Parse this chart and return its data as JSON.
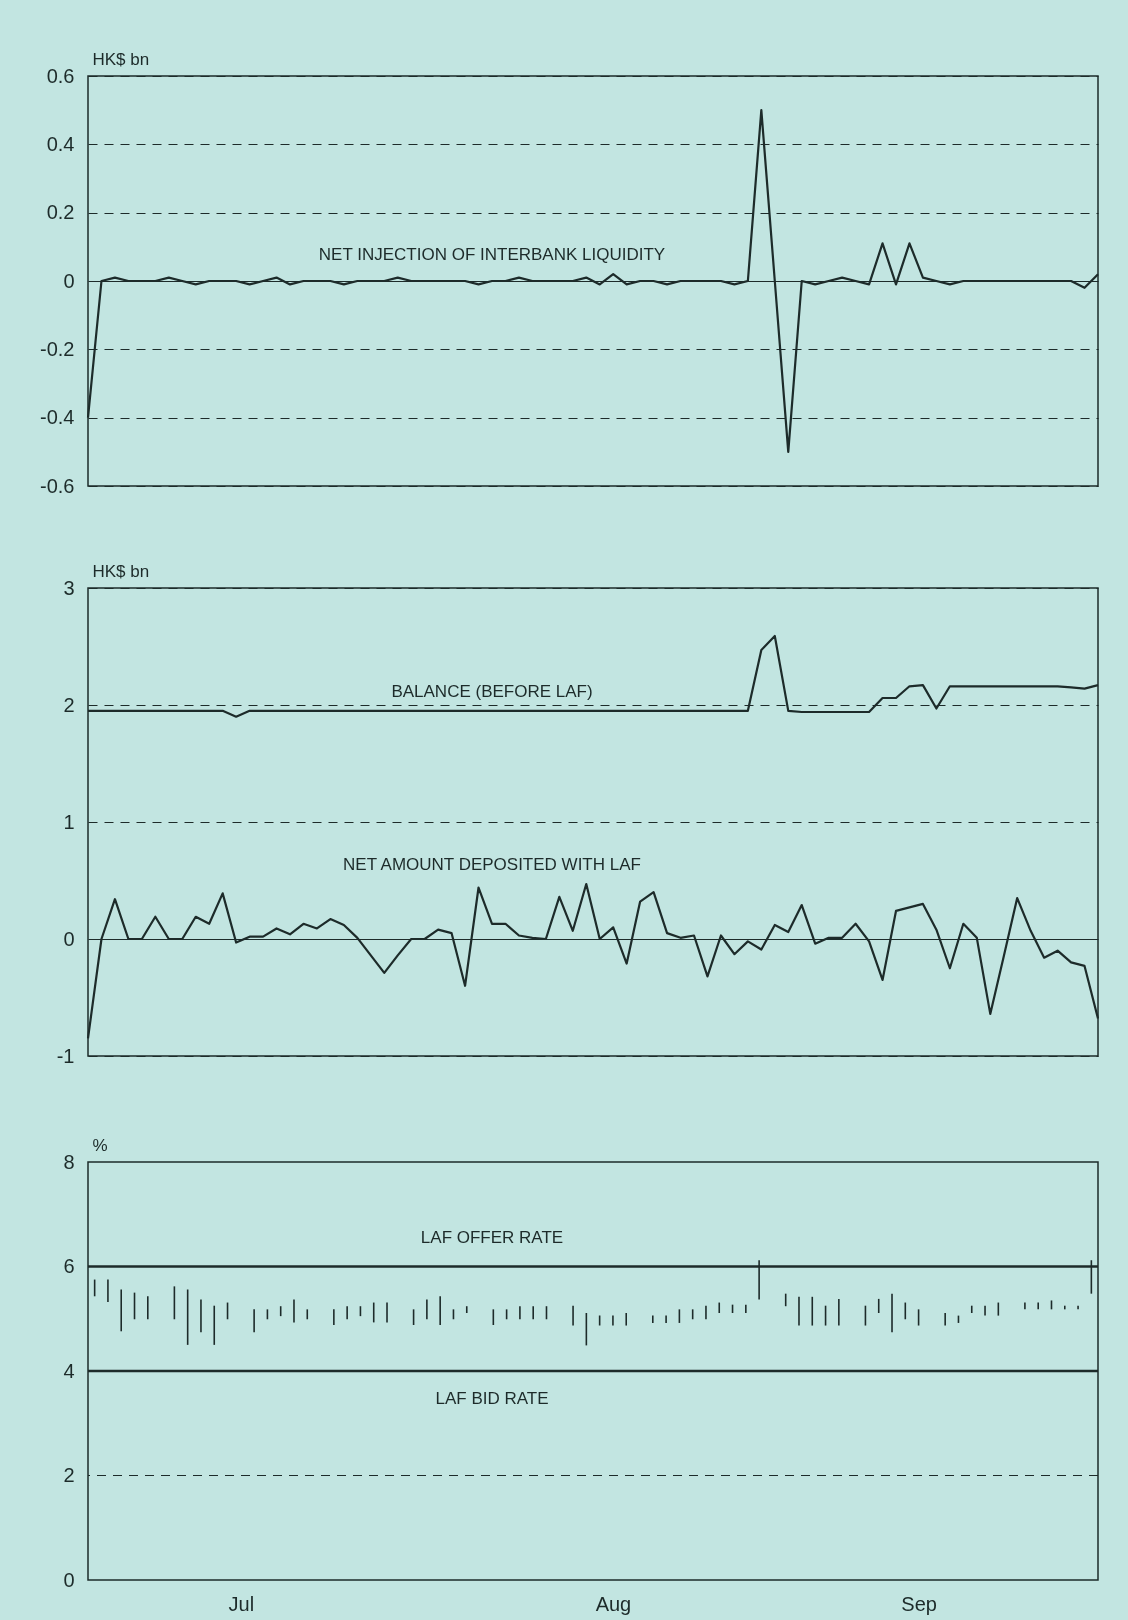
{
  "chart_data": [
    {
      "type": "line",
      "ylabel": "HK$ bn",
      "categories": [
        null,
        null,
        null,
        null,
        null,
        null,
        null,
        null,
        null,
        null,
        null,
        null,
        null,
        null,
        null,
        null,
        null,
        null,
        null,
        null,
        null,
        null,
        null,
        null,
        null,
        null,
        null,
        null,
        null,
        null,
        null,
        null,
        null,
        null,
        null,
        null,
        null,
        null,
        null,
        null,
        null,
        null,
        null,
        null,
        null,
        null,
        null,
        null,
        null,
        null,
        null,
        null,
        null,
        null,
        null,
        null,
        null,
        null,
        null,
        null,
        null,
        null,
        null,
        null,
        null,
        null,
        null,
        null,
        null,
        null,
        null,
        null,
        null,
        null,
        null,
        null
      ],
      "series": [
        {
          "name": "NET INJECTION OF INTERBANK LIQUIDITY",
          "color": "#1d2b2a",
          "values": [
            -0.4,
            0,
            0.01,
            0,
            0,
            0,
            0.01,
            0,
            -0.01,
            0,
            0,
            0,
            -0.01,
            0,
            0.01,
            -0.01,
            0,
            0,
            0,
            -0.01,
            0,
            0,
            0,
            0.01,
            0,
            0,
            0,
            0,
            0,
            -0.01,
            0,
            0,
            0.01,
            0,
            0,
            0,
            0,
            0.01,
            -0.01,
            0.02,
            -0.01,
            0,
            0,
            -0.01,
            0,
            0,
            0,
            0,
            -0.01,
            0,
            0.5,
            0,
            -0.5,
            0,
            -0.01,
            0,
            0.01,
            0,
            -0.01,
            0.11,
            -0.01,
            0.11,
            0.01,
            0,
            -0.01,
            0,
            0,
            0,
            0,
            0,
            0,
            0,
            0,
            0,
            -0.02,
            0.02
          ]
        }
      ],
      "ylim": [
        -0.6,
        0.6
      ],
      "yticks": [
        -0.6,
        -0.4,
        -0.2,
        0,
        0.2,
        0.4,
        0.6
      ],
      "grid": "y",
      "tick_labels": "y"
    },
    {
      "type": "line",
      "ylabel": "HK$ bn",
      "categories": [
        null,
        null,
        null,
        null,
        null,
        null,
        null,
        null,
        null,
        null,
        null,
        null,
        null,
        null,
        null,
        null,
        null,
        null,
        null,
        null,
        null,
        null,
        null,
        null,
        null,
        null,
        null,
        null,
        null,
        null,
        null,
        null,
        null,
        null,
        null,
        null,
        null,
        null,
        null,
        null,
        null,
        null,
        null,
        null,
        null,
        null,
        null,
        null,
        null,
        null,
        null,
        null,
        null,
        null,
        null,
        null,
        null,
        null,
        null,
        null,
        null,
        null,
        null,
        null,
        null,
        null,
        null,
        null,
        null,
        null,
        null,
        null,
        null,
        null,
        null,
        null
      ],
      "series": [
        {
          "name": "BALANCE (BEFORE LAF)",
          "color": "#1d2b2a",
          "values": [
            1.95,
            1.95,
            1.95,
            1.95,
            1.95,
            1.95,
            1.95,
            1.95,
            1.95,
            1.95,
            1.95,
            1.9,
            1.95,
            1.95,
            1.95,
            1.95,
            1.95,
            1.95,
            1.95,
            1.95,
            1.95,
            1.95,
            1.95,
            1.95,
            1.95,
            1.95,
            1.95,
            1.95,
            1.95,
            1.95,
            1.95,
            1.95,
            1.95,
            1.95,
            1.95,
            1.95,
            1.95,
            1.95,
            1.95,
            1.95,
            1.95,
            1.95,
            1.95,
            1.95,
            1.95,
            1.95,
            1.95,
            1.95,
            1.95,
            1.95,
            2.47,
            2.59,
            1.95,
            1.94,
            1.94,
            1.94,
            1.94,
            1.94,
            1.94,
            2.06,
            2.06,
            2.16,
            2.17,
            1.97,
            2.16,
            2.16,
            2.16,
            2.16,
            2.16,
            2.16,
            2.16,
            2.16,
            2.16,
            2.15,
            2.14,
            2.17
          ]
        },
        {
          "name": "NET AMOUNT DEPOSITED WITH LAF",
          "color": "#1d2b2a",
          "values": [
            -0.85,
            0,
            0.34,
            0,
            0,
            0.19,
            0,
            0,
            0.19,
            0.13,
            0.39,
            -0.03,
            0.02,
            0.02,
            0.09,
            0.04,
            0.13,
            0.09,
            0.17,
            0.12,
            0.01,
            -0.14,
            -0.29,
            -0.14,
            0,
            0,
            0.08,
            0.05,
            -0.4,
            0.44,
            0.13,
            0.13,
            0.03,
            0.01,
            0,
            0.36,
            0.07,
            0.47,
            0,
            0.1,
            -0.21,
            0.32,
            0.4,
            0.05,
            0.01,
            0.03,
            -0.32,
            0.03,
            -0.13,
            -0.02,
            -0.09,
            0.12,
            0.06,
            0.29,
            -0.04,
            0.01,
            0.01,
            0.13,
            -0.02,
            -0.35,
            0.24,
            0.27,
            0.3,
            0.08,
            -0.25,
            0.13,
            0.01,
            -0.64,
            -0.15,
            0.35,
            0.07,
            -0.16,
            -0.1,
            -0.2,
            -0.23,
            -0.68
          ]
        }
      ],
      "ylim": [
        -1,
        3
      ],
      "yticks": [
        -1,
        0,
        1,
        2,
        3
      ],
      "grid": "y",
      "tick_labels": "y"
    },
    {
      "type": "bar",
      "ylabel": "%",
      "categories": [
        null,
        null,
        null,
        null,
        null,
        null,
        null,
        null,
        null,
        null,
        null,
        "Jul",
        null,
        null,
        null,
        null,
        null,
        null,
        null,
        null,
        null,
        null,
        null,
        null,
        null,
        null,
        null,
        null,
        null,
        null,
        null,
        null,
        null,
        null,
        null,
        null,
        null,
        null,
        null,
        "Aug",
        null,
        null,
        null,
        null,
        null,
        null,
        null,
        null,
        null,
        null,
        null,
        null,
        null,
        null,
        null,
        null,
        null,
        null,
        null,
        null,
        null,
        null,
        "Sep",
        null,
        null,
        null,
        null,
        null,
        null,
        null,
        null,
        null,
        null,
        null,
        null,
        null
      ],
      "base": [
        5.43,
        5.32,
        4.76,
        4.99,
        4.99,
        null,
        4.99,
        4.5,
        4.74,
        4.5,
        4.99,
        null,
        4.74,
        4.99,
        5.05,
        4.93,
        4.99,
        null,
        4.88,
        4.99,
        5.05,
        4.93,
        4.93,
        null,
        4.88,
        4.99,
        4.88,
        4.99,
        5.11,
        null,
        4.88,
        4.99,
        4.99,
        4.99,
        4.99,
        null,
        4.87,
        4.49,
        4.87,
        4.87,
        4.87,
        null,
        4.92,
        4.92,
        4.92,
        4.99,
        4.99,
        5.11,
        5.11,
        5.11,
        5.37,
        null,
        5.24,
        4.87,
        4.87,
        4.87,
        4.87,
        null,
        4.87,
        5.11,
        4.74,
        4.99,
        4.87,
        null,
        4.87,
        4.92,
        5.11,
        5.06,
        5.06,
        null,
        5.18,
        5.18,
        5.18,
        5.18,
        5.18,
        5.48
      ],
      "values": [
        0.32,
        0.43,
        0.8,
        0.51,
        0.44,
        null,
        0.63,
        1.06,
        0.63,
        0.75,
        0.32,
        null,
        0.44,
        0.19,
        0.19,
        0.44,
        0.19,
        null,
        0.3,
        0.25,
        0.19,
        0.38,
        0.38,
        null,
        0.3,
        0.38,
        0.55,
        0.19,
        0.13,
        null,
        0.3,
        0.19,
        0.25,
        0.25,
        0.25,
        null,
        0.38,
        0.62,
        0.19,
        0.19,
        0.24,
        null,
        0.14,
        0.14,
        0.26,
        0.19,
        0.26,
        0.2,
        0.16,
        0.16,
        0.75,
        null,
        0.24,
        0.55,
        0.55,
        0.38,
        0.51,
        null,
        0.38,
        0.27,
        0.74,
        0.32,
        0.31,
        null,
        0.24,
        0.14,
        0.14,
        0.19,
        0.25,
        null,
        0.13,
        0.13,
        0.17,
        0.07,
        0.07,
        0.64
      ],
      "color": "#1d2b2a",
      "ylim": [
        0,
        8
      ],
      "yticks": [
        0,
        2,
        4,
        6,
        8
      ],
      "ref_lines": [
        {
          "axis": "y",
          "value": 6,
          "label": "LAF OFFER RATE",
          "color": "#1d2b2a"
        },
        {
          "axis": "y",
          "value": 4,
          "label": "LAF BID RATE",
          "color": "#1d2b2a"
        },
        {
          "axis": "y",
          "value": 2,
          "color": "#1d2b2a",
          "line_style": "dashed"
        }
      ]
    }
  ]
}
